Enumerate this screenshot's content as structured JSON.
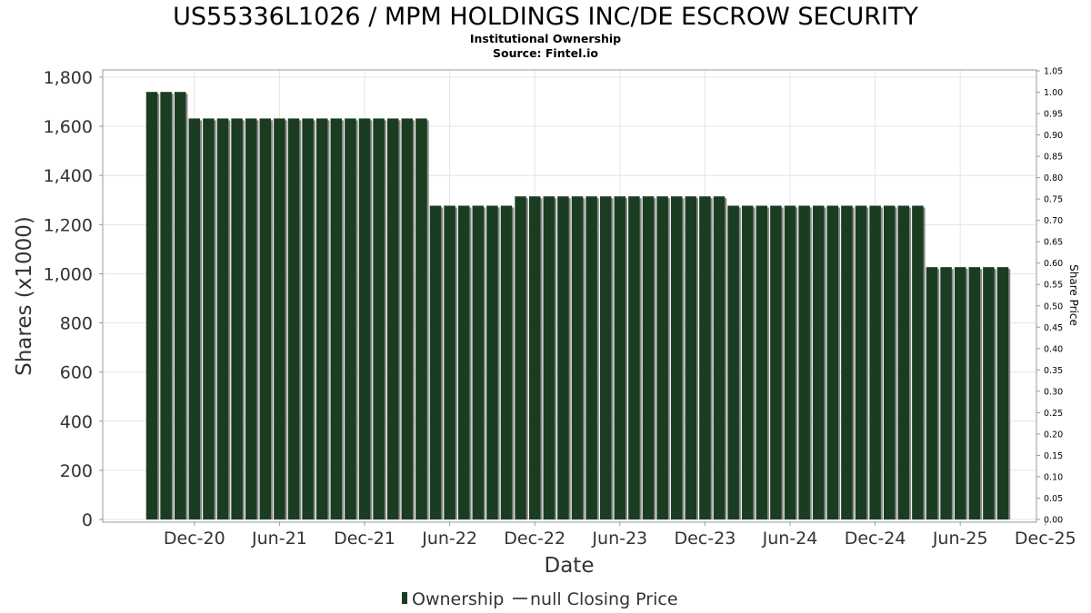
{
  "chart_data": {
    "type": "bar",
    "title": "US55336L1026 / MPM HOLDINGS INC/DE ESCROW SECURITY",
    "subtitle_lines": [
      "Institutional Ownership",
      "Source: Fintel.io"
    ],
    "xlabel": "Date",
    "ylabel": "Shares (x1000)",
    "y2label": "Share Price",
    "ylim": [
      0,
      1800
    ],
    "y_ticks": [
      0,
      200,
      400,
      600,
      800,
      1000,
      1200,
      1400,
      1600,
      1800
    ],
    "y_tick_labels": [
      "0",
      "200",
      "400",
      "600",
      "800",
      "1,000",
      "1,200",
      "1,400",
      "1,600",
      "1,800"
    ],
    "y2lim": [
      0,
      1.05
    ],
    "y2_ticks": [
      0,
      0.05,
      0.1,
      0.15,
      0.2,
      0.25,
      0.3,
      0.35,
      0.4,
      0.45,
      0.5,
      0.55,
      0.6,
      0.65,
      0.7,
      0.75,
      0.8,
      0.85,
      0.9,
      0.95,
      1.0,
      1.05
    ],
    "y2_tick_labels": [
      "0.00",
      "0.05",
      "0.10",
      "0.15",
      "0.20",
      "0.25",
      "0.30",
      "0.35",
      "0.40",
      "0.45",
      "0.50",
      "0.55",
      "0.60",
      "0.65",
      "0.70",
      "0.75",
      "0.80",
      "0.85",
      "0.90",
      "0.95",
      "1.00",
      "1.05"
    ],
    "x_tick_labels": [
      "Dec-20",
      "Jun-21",
      "Dec-21",
      "Jun-22",
      "Dec-22",
      "Jun-23",
      "Dec-23",
      "Jun-24",
      "Dec-24",
      "Jun-25",
      "Dec-25"
    ],
    "x_tick_offsets": [
      3,
      9,
      15,
      21,
      27,
      33,
      39,
      45,
      51,
      57,
      63
    ],
    "bar_offsets": [
      0,
      1,
      2,
      3,
      4,
      5,
      6,
      7,
      8,
      9,
      10,
      11,
      12,
      13,
      14,
      15,
      16,
      17,
      18,
      19,
      20,
      21,
      22,
      23,
      24,
      25,
      26,
      27,
      28,
      29,
      30,
      31,
      32,
      33,
      34,
      35,
      36,
      37,
      38,
      39,
      40,
      41,
      42,
      43,
      44,
      45,
      46,
      47,
      48,
      49,
      50,
      51,
      52,
      53,
      54,
      55,
      56,
      57,
      58,
      59,
      60
    ],
    "values": [
      1740,
      1740,
      1740,
      1632,
      1632,
      1632,
      1632,
      1632,
      1632,
      1632,
      1632,
      1632,
      1632,
      1632,
      1632,
      1632,
      1632,
      1632,
      1632,
      1632,
      1277,
      1277,
      1277,
      1277,
      1277,
      1277,
      1315,
      1315,
      1315,
      1315,
      1315,
      1315,
      1315,
      1315,
      1315,
      1315,
      1315,
      1315,
      1315,
      1315,
      1315,
      1277,
      1277,
      1277,
      1277,
      1277,
      1277,
      1277,
      1277,
      1277,
      1277,
      1277,
      1277,
      1277,
      1277,
      1027,
      1027,
      1027,
      1027,
      1027,
      1027
    ],
    "series": [
      {
        "name": "Ownership",
        "color": "#1a3d22"
      },
      {
        "name": "null Closing Price",
        "color": "#555555"
      }
    ],
    "grid": true,
    "legend_position": "bottom-center"
  }
}
